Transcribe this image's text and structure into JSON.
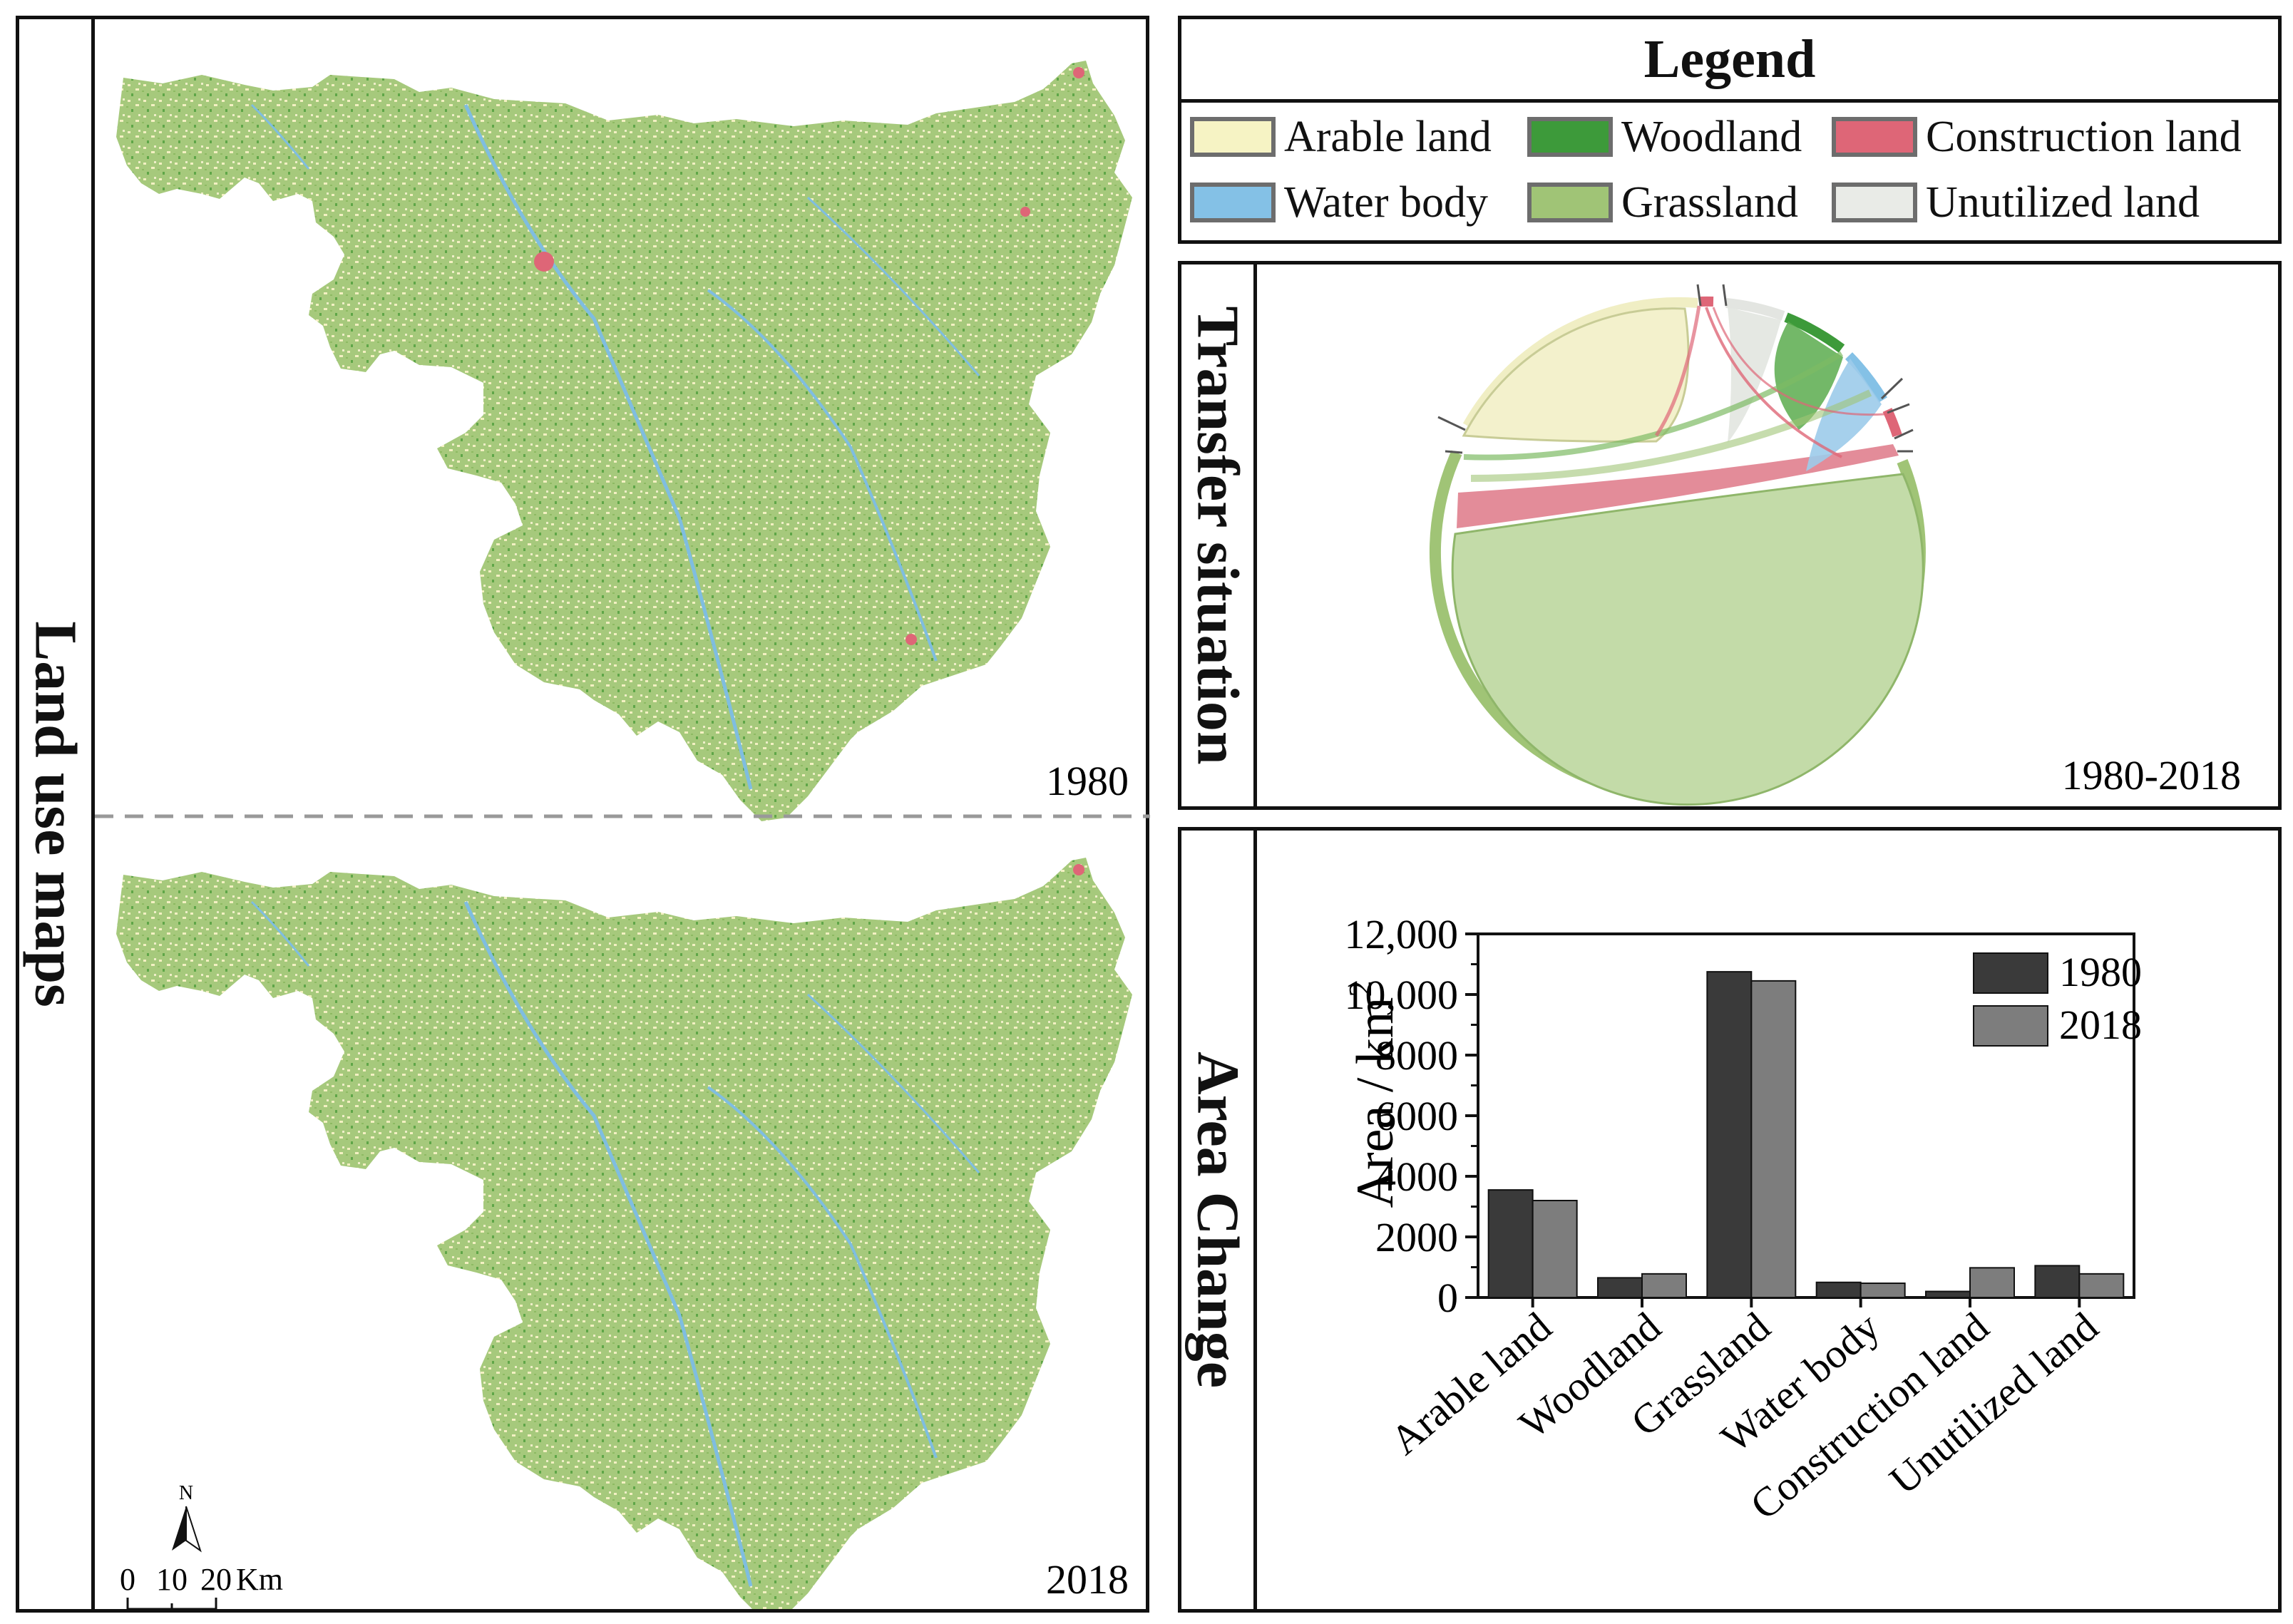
{
  "maps_panel": {
    "side_label": "Land use maps",
    "top_year": "1980",
    "bottom_year": "2018",
    "north_label": "N",
    "scale_labels": [
      "0",
      "10",
      "20",
      "Km"
    ]
  },
  "legend": {
    "title": "Legend",
    "items": [
      {
        "label": "Arable land",
        "color": "#f6f3c4"
      },
      {
        "label": "Woodland",
        "color": "#3d9a3a"
      },
      {
        "label": "Construction land",
        "color": "#de6677"
      },
      {
        "label": "Water body",
        "color": "#84c1e6"
      },
      {
        "label": "Grassland",
        "color": "#a0c476"
      },
      {
        "label": "Unutilized land",
        "color": "#e9ebe7"
      }
    ]
  },
  "transfer": {
    "side_label": "Transfer situation",
    "period": "1980-2018"
  },
  "area_change": {
    "side_label": "Area Change"
  },
  "chart_data": {
    "type": "bar",
    "title": "",
    "xlabel": "",
    "ylabel": "Area / km",
    "ylabel_superscript": "2",
    "categories": [
      "Arable land",
      "Woodland",
      "Grassland",
      "Water body",
      "Construction land",
      "Unutilized land"
    ],
    "series": [
      {
        "name": "1980",
        "color": "#3a3a3a",
        "values": [
          3550,
          650,
          10750,
          500,
          200,
          1050
        ]
      },
      {
        "name": "2018",
        "color": "#7d7d7d",
        "values": [
          3200,
          780,
          10450,
          470,
          980,
          780
        ]
      }
    ],
    "ylim": [
      0,
      12000
    ],
    "yticks": [
      0,
      2000,
      4000,
      6000,
      8000,
      10000,
      12000
    ],
    "ytick_labels": [
      "0",
      "2000",
      "4000",
      "6000",
      "8000",
      "10,000",
      "12,000"
    ],
    "legend_position": "top-right",
    "grid": false
  }
}
